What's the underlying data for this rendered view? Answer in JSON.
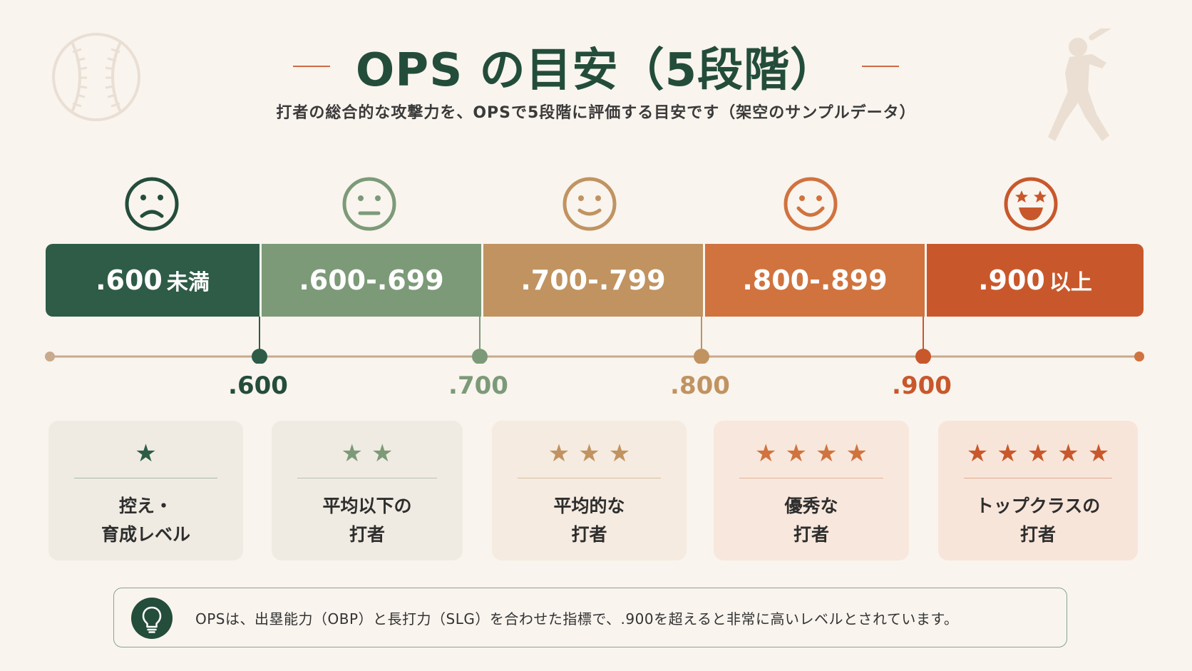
{
  "title": "OPS の目安（5段階）",
  "subtitle": "打者の総合的な攻撃力を、OPSで5段階に評価する目安です（架空のサンプルデータ）",
  "colors": {
    "level1": "#2e5c47",
    "level2": "#7c9a78",
    "level3": "#c09361",
    "level4": "#d0733f",
    "level5": "#c8582b",
    "axis": "#c8aa8c",
    "title": "#234d3a"
  },
  "levels": [
    {
      "range": ".600",
      "suffix": "未満",
      "stars": "★",
      "desc1": "控え・",
      "desc2": "育成レベル",
      "face": "sad-face-icon"
    },
    {
      "range": ".600-.699",
      "suffix": "",
      "stars": "★★",
      "desc1": "平均以下の",
      "desc2": "打者",
      "face": "neutral-face-icon"
    },
    {
      "range": ".700-.799",
      "suffix": "",
      "stars": "★★★",
      "desc1": "平均的な",
      "desc2": "打者",
      "face": "smile-face-icon"
    },
    {
      "range": ".800-.899",
      "suffix": "",
      "stars": "★★★★",
      "desc1": "優秀な",
      "desc2": "打者",
      "face": "happy-face-icon"
    },
    {
      "range": ".900",
      "suffix": "以上",
      "stars": "★★★★★",
      "desc1": "トップクラスの",
      "desc2": "打者",
      "face": "star-eyes-face-icon"
    }
  ],
  "thresholds": [
    ".600",
    ".700",
    ".800",
    ".900"
  ],
  "note": "OPSは、出塁能力（OBP）と長打力（SLG）を合わせた指標で、.900を超えると非常に高いレベルとされています。"
}
